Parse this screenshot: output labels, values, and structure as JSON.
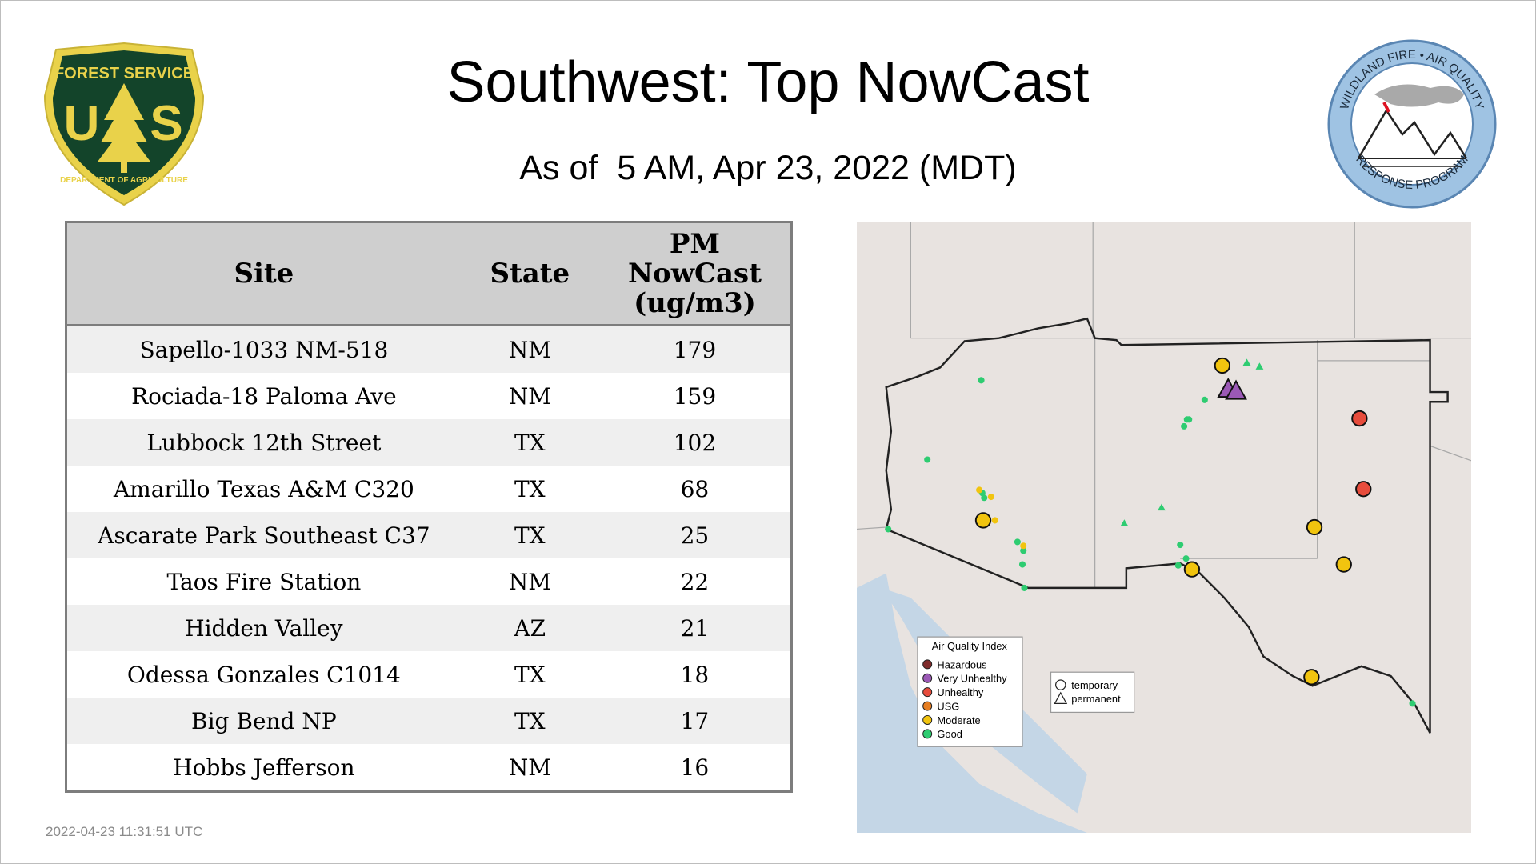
{
  "header": {
    "title": "Southwest: Top NowCast",
    "subtitle": "As of  5 AM, Apr 23, 2022 (MDT)"
  },
  "logos": {
    "left": {
      "top_text": "FOREST SERVICE",
      "letters": "U S",
      "bottom_text": "DEPARTMENT OF AGRICULTURE"
    },
    "right": {
      "top_text": "WILDLAND FIRE • AIR QUALITY",
      "bottom_text": "RESPONSE PROGRAM"
    }
  },
  "table": {
    "headers": {
      "site": "Site",
      "state": "State",
      "pm_line1": "PM",
      "pm_line2": "NowCast",
      "pm_line3": "(ug/m3)"
    },
    "rows": [
      {
        "site": "Sapello-1033 NM-518",
        "state": "NM",
        "value": "179"
      },
      {
        "site": "Rociada-18 Paloma Ave",
        "state": "NM",
        "value": "159"
      },
      {
        "site": "Lubbock 12th Street",
        "state": "TX",
        "value": "102"
      },
      {
        "site": "Amarillo Texas A&M C320",
        "state": "TX",
        "value": "68"
      },
      {
        "site": "Ascarate Park Southeast C37",
        "state": "TX",
        "value": "25"
      },
      {
        "site": "Taos Fire Station",
        "state": "NM",
        "value": "22"
      },
      {
        "site": "Hidden Valley",
        "state": "AZ",
        "value": "21"
      },
      {
        "site": "Odessa Gonzales C1014",
        "state": "TX",
        "value": "18"
      },
      {
        "site": "Big Bend NP",
        "state": "TX",
        "value": "17"
      },
      {
        "site": "Hobbs Jefferson",
        "state": "NM",
        "value": "16"
      }
    ]
  },
  "map": {
    "legend": {
      "title": "Air Quality Index",
      "items": [
        {
          "label": "Hazardous",
          "color": "#7e2a2a"
        },
        {
          "label": "Very Unhealthy",
          "color": "#9b59b6"
        },
        {
          "label": "Unhealthy",
          "color": "#e74c3c"
        },
        {
          "label": "USG",
          "color": "#e67e22"
        },
        {
          "label": "Moderate",
          "color": "#f1c40f"
        },
        {
          "label": "Good",
          "color": "#2ecc71"
        }
      ],
      "shapes": {
        "temporary": "temporary",
        "permanent": "permanent"
      }
    }
  },
  "footer": {
    "timestamp": "2022-04-23 11:31:51 UTC"
  }
}
